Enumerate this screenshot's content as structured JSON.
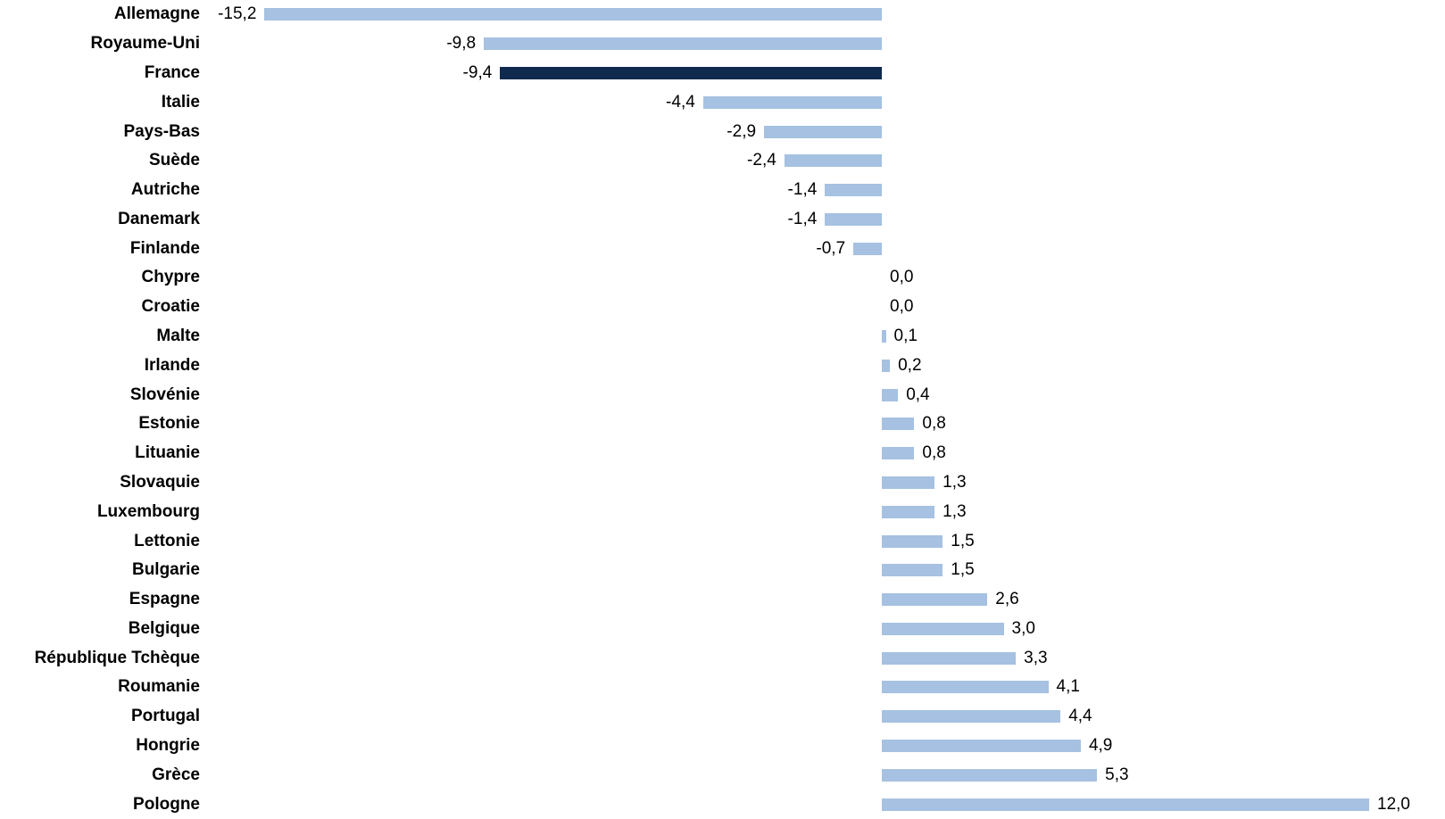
{
  "chart_data": {
    "type": "bar",
    "orientation": "horizontal",
    "title": "",
    "xlabel": "",
    "ylabel": "",
    "xlim": [
      -16,
      13
    ],
    "grid": false,
    "legend": false,
    "highlight_category": "France",
    "categories": [
      "Allemagne",
      "Royaume-Uni",
      "France",
      "Italie",
      "Pays-Bas",
      "Suède",
      "Autriche",
      "Danemark",
      "Finlande",
      "Chypre",
      "Croatie",
      "Malte",
      "Irlande",
      "Slovénie",
      "Estonie",
      "Lituanie",
      "Slovaquie",
      "Luxembourg",
      "Lettonie",
      "Bulgarie",
      "Espagne",
      "Belgique",
      "République Tchèque",
      "Roumanie",
      "Portugal",
      "Hongrie",
      "Grèce",
      "Pologne"
    ],
    "values": [
      -15.2,
      -9.8,
      -9.4,
      -4.4,
      -2.9,
      -2.4,
      -1.4,
      -1.4,
      -0.7,
      0.0,
      0.0,
      0.1,
      0.2,
      0.4,
      0.8,
      0.8,
      1.3,
      1.3,
      1.5,
      1.5,
      2.6,
      3.0,
      3.3,
      4.1,
      4.4,
      4.9,
      5.3,
      12.0
    ],
    "value_labels": [
      "-15,2",
      "-9,8",
      "-9,4",
      "-4,4",
      "-2,9",
      "-2,4",
      "-1,4",
      "-1,4",
      "-0,7",
      "0,0",
      "0,0",
      "0,1",
      "0,2",
      "0,4",
      "0,8",
      "0,8",
      "1,3",
      "1,3",
      "1,5",
      "1,5",
      "2,6",
      "3,0",
      "3,3",
      "4,1",
      "4,4",
      "4,9",
      "5,3",
      "12,0"
    ],
    "colors": {
      "bar": "#a6c1e1",
      "highlight": "#0f2a4e",
      "text": "#000000",
      "background": "#ffffff"
    }
  }
}
